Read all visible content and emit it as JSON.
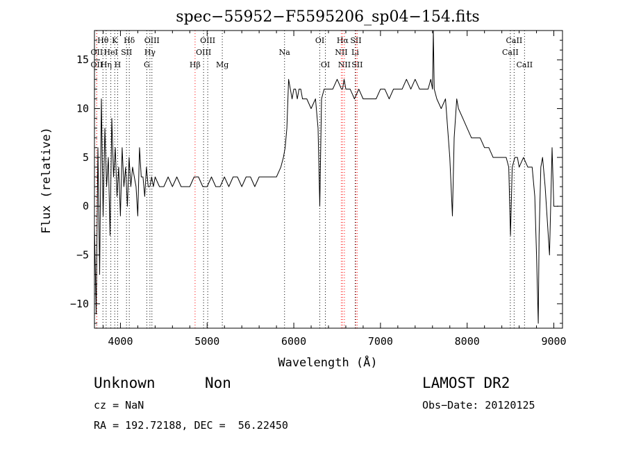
{
  "chart_data": {
    "type": "line",
    "title": "spec−55952−F5595206_sp04−154.fits",
    "xlabel": "Wavelength (Å)",
    "ylabel": "Flux (relative)",
    "xlim": [
      3700,
      9100
    ],
    "ylim": [
      -12.5,
      18
    ],
    "xticks": [
      4000,
      5000,
      6000,
      7000,
      8000,
      9000
    ],
    "xtick_labels": [
      "4000",
      "5000",
      "6000",
      "7000",
      "8000",
      "9000"
    ],
    "yticks": [
      -10,
      -5,
      0,
      5,
      10,
      15
    ],
    "ytick_labels": [
      "−10",
      "−5",
      "0",
      "5",
      "10",
      "15"
    ],
    "grid": false,
    "series": [
      {
        "color": "#000000",
        "x": [
          3700,
          3720,
          3740,
          3760,
          3780,
          3800,
          3820,
          3840,
          3860,
          3880,
          3900,
          3920,
          3940,
          3960,
          3980,
          4000,
          4020,
          4040,
          4060,
          4080,
          4100,
          4120,
          4140,
          4160,
          4180,
          4200,
          4220,
          4240,
          4260,
          4280,
          4300,
          4320,
          4340,
          4360,
          4380,
          4400,
          4450,
          4500,
          4550,
          4600,
          4650,
          4700,
          4750,
          4800,
          4850,
          4900,
          4950,
          5000,
          5050,
          5100,
          5150,
          5200,
          5250,
          5300,
          5350,
          5400,
          5450,
          5500,
          5550,
          5600,
          5650,
          5700,
          5750,
          5800,
          5850,
          5880,
          5900,
          5920,
          5940,
          5960,
          5980,
          6000,
          6020,
          6040,
          6060,
          6080,
          6100,
          6150,
          6200,
          6250,
          6280,
          6300,
          6320,
          6350,
          6400,
          6450,
          6500,
          6550,
          6563,
          6580,
          6600,
          6650,
          6700,
          6750,
          6800,
          6850,
          6900,
          6950,
          7000,
          7050,
          7100,
          7150,
          7200,
          7250,
          7300,
          7350,
          7400,
          7450,
          7500,
          7550,
          7580,
          7600,
          7610,
          7620,
          7650,
          7700,
          7750,
          7800,
          7830,
          7850,
          7880,
          7900,
          7950,
          8000,
          8050,
          8100,
          8150,
          8200,
          8250,
          8300,
          8350,
          8400,
          8450,
          8480,
          8500,
          8520,
          8550,
          8580,
          8600,
          8650,
          8700,
          8750,
          8780,
          8800,
          8820,
          8830,
          8850,
          8870,
          8900,
          8950,
          8980,
          9000,
          9020,
          9050
        ],
        "y": [
          -2,
          -11,
          6,
          -7,
          11,
          -1,
          8,
          2,
          5,
          -3,
          9,
          3,
          6,
          1,
          4,
          -1,
          6,
          2,
          4,
          0,
          5,
          2,
          4,
          3,
          2,
          -1,
          6,
          3,
          3,
          1,
          4,
          2,
          2,
          3,
          2,
          3,
          2,
          2,
          3,
          2,
          3,
          2,
          2,
          2,
          3,
          3,
          2,
          2,
          3,
          2,
          2,
          3,
          2,
          3,
          3,
          2,
          3,
          3,
          2,
          3,
          3,
          3,
          3,
          3,
          4,
          5,
          6,
          8,
          13,
          12,
          11,
          12,
          12,
          11,
          12,
          12,
          11,
          11,
          10,
          11,
          8,
          0,
          11,
          12,
          12,
          12,
          13,
          12,
          12,
          13,
          12,
          12,
          11,
          12,
          11,
          11,
          11,
          11,
          12,
          12,
          11,
          12,
          12,
          12,
          13,
          12,
          13,
          12,
          12,
          12,
          13,
          12,
          18,
          12,
          11,
          10,
          11,
          5,
          -1,
          7,
          11,
          10,
          9,
          8,
          7,
          7,
          7,
          6,
          6,
          5,
          5,
          5,
          5,
          4,
          -3,
          4,
          5,
          5,
          4,
          5,
          4,
          4,
          1,
          -5,
          -12,
          -3,
          4,
          5,
          2,
          -5,
          6,
          0,
          0,
          0
        ]
      }
    ],
    "lines": [
      {
        "label": "Hθ",
        "row": 1,
        "x": 3798,
        "color": "#000000"
      },
      {
        "label": "K",
        "row": 1,
        "x": 3934,
        "color": "#000000"
      },
      {
        "label": "Hδ",
        "row": 1,
        "x": 4102,
        "color": "#000000"
      },
      {
        "label": "OIII",
        "row": 1,
        "x": 4363,
        "color": "#000000"
      },
      {
        "label": "OIII",
        "row": 1,
        "x": 5007,
        "color": "#000000"
      },
      {
        "label": "OI",
        "row": 1,
        "x": 6300,
        "color": "#000000"
      },
      {
        "label": "Hα",
        "row": 1,
        "x": 6563,
        "color": "#ff0000"
      },
      {
        "label": "SII",
        "row": 1,
        "x": 6716,
        "color": "#ff0000"
      },
      {
        "label": "CaII",
        "row": 1,
        "x": 8542,
        "color": "#000000"
      },
      {
        "label": "OII",
        "row": 2,
        "x": 3727,
        "color": "#000000"
      },
      {
        "label": "HeI",
        "row": 2,
        "x": 3889,
        "color": "#000000"
      },
      {
        "label": "SII",
        "row": 2,
        "x": 4070,
        "color": "#000000"
      },
      {
        "label": "Hγ",
        "row": 2,
        "x": 4340,
        "color": "#000000"
      },
      {
        "label": "OIII",
        "row": 2,
        "x": 4959,
        "color": "#000000"
      },
      {
        "label": "Na",
        "row": 2,
        "x": 5893,
        "color": "#000000"
      },
      {
        "label": "NII",
        "row": 2,
        "x": 6548,
        "color": "#ff0000"
      },
      {
        "label": "Li",
        "row": 2,
        "x": 6708,
        "color": "#000000"
      },
      {
        "label": "CaII",
        "row": 2,
        "x": 8498,
        "color": "#000000"
      },
      {
        "label": "OII",
        "row": 3,
        "x": 3727,
        "color": "#ff0000"
      },
      {
        "label": "Hη",
        "row": 3,
        "x": 3835,
        "color": "#000000"
      },
      {
        "label": "H",
        "row": 3,
        "x": 3968,
        "color": "#000000"
      },
      {
        "label": "G",
        "row": 3,
        "x": 4304,
        "color": "#000000"
      },
      {
        "label": "Hβ",
        "row": 3,
        "x": 4861,
        "color": "#ff0000"
      },
      {
        "label": "Mg",
        "row": 3,
        "x": 5175,
        "color": "#000000"
      },
      {
        "label": "OI",
        "row": 3,
        "x": 6364,
        "color": "#000000"
      },
      {
        "label": "NII",
        "row": 3,
        "x": 6584,
        "color": "#ff0000"
      },
      {
        "label": "SII",
        "row": 3,
        "x": 6731,
        "color": "#ff0000"
      },
      {
        "label": "CaII",
        "row": 3,
        "x": 8662,
        "color": "#000000"
      }
    ]
  },
  "info": {
    "object_class": "Unknown",
    "subclass": "Non",
    "survey": "LAMOST DR2",
    "cz": "cz = NaN",
    "obs_date": "Obs−Date: 20120125",
    "coords": "RA = 192.72188, DEC =  56.22450"
  }
}
